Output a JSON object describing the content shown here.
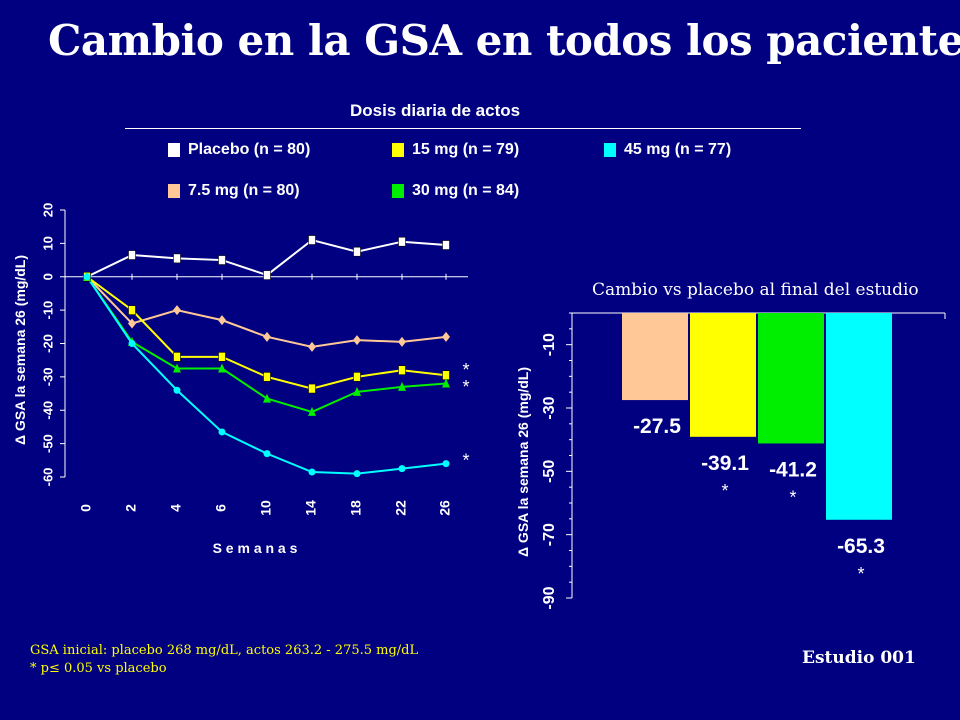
{
  "title": "Cambio en la GSA en todos los pacientes",
  "legend": {
    "title": "Dosis diaria de actos",
    "items": [
      {
        "label": "Placebo (n = 80)",
        "color": "#ffffff"
      },
      {
        "label": "15 mg (n = 79)",
        "color": "#ffff00"
      },
      {
        "label": "45 mg (n = 77)",
        "color": "#00ffff"
      },
      {
        "label": "7.5 mg (n = 80)",
        "color": "#ffc896"
      },
      {
        "label": "30 mg (n = 84)",
        "color": "#00ee00"
      }
    ]
  },
  "footnote": {
    "line1": "GSA inicial:  placebo 268 mg/dL, actos 263.2 - 275.5 mg/dL",
    "line2": "* p≤ 0.05 vs placebo"
  },
  "study": "Estudio 001",
  "chart_data": [
    {
      "type": "line",
      "xlabel": "S e m a n a s",
      "ylabel": "Δ GSA  la semana 26  (mg/dL)",
      "categories": [
        "0",
        "2",
        "4",
        "6",
        "10",
        "14",
        "18",
        "22",
        "26"
      ],
      "ylim": [
        -60,
        20
      ],
      "yticks": [
        20,
        10,
        0,
        -10,
        -20,
        -30,
        -40,
        -50,
        -60
      ],
      "grid": false,
      "series": [
        {
          "name": "Placebo (n = 80)",
          "color": "#ffffff",
          "marker": "square",
          "values": [
            0,
            6.5,
            5.5,
            5,
            0.5,
            11,
            7.5,
            10.5,
            9.5
          ]
        },
        {
          "name": "7.5 mg (n = 80)",
          "color": "#ffc896",
          "marker": "diamond",
          "values": [
            0,
            -14,
            -10,
            -13,
            -18,
            -21,
            -19,
            -19.5,
            -18
          ]
        },
        {
          "name": "15 mg (n = 79)",
          "color": "#ffff00",
          "marker": "square",
          "values": [
            0,
            -10,
            -24,
            -24,
            -30,
            -33.5,
            -30,
            -28,
            -29.5
          ]
        },
        {
          "name": "30 mg (n = 84)",
          "color": "#00ee00",
          "marker": "triangle",
          "values": [
            0,
            -19.5,
            -27.5,
            -27.5,
            -36.5,
            -40.5,
            -34.5,
            -33,
            -32
          ]
        },
        {
          "name": "45 mg (n = 77)",
          "color": "#00ffff",
          "marker": "circle",
          "values": [
            0,
            -20,
            -34,
            -46.5,
            -53,
            -58.5,
            -59,
            -57.5,
            -56
          ]
        }
      ],
      "significance": [
        {
          "marker": "*",
          "y": -28
        },
        {
          "marker": "*",
          "y": -33
        },
        {
          "marker": "*",
          "y": -55
        }
      ]
    },
    {
      "type": "bar",
      "title": "Cambio vs placebo al final del estudio",
      "ylabel": "Δ GSA  la semana 26  (mg/dL)",
      "ylim": [
        -90,
        0
      ],
      "yticks": [
        -10,
        -30,
        -50,
        -70,
        -90
      ],
      "categories": [
        "7.5 mg",
        "15 mg",
        "30 mg",
        "45 mg"
      ],
      "values": [
        -27.5,
        -39.1,
        -41.2,
        -65.3
      ],
      "labels": [
        "-27.5",
        "-39.1",
        "-41.2",
        "-65.3"
      ],
      "colors": [
        "#ffc896",
        "#ffff00",
        "#00ee00",
        "#00ffff"
      ],
      "significant": [
        false,
        true,
        true,
        true
      ]
    }
  ]
}
